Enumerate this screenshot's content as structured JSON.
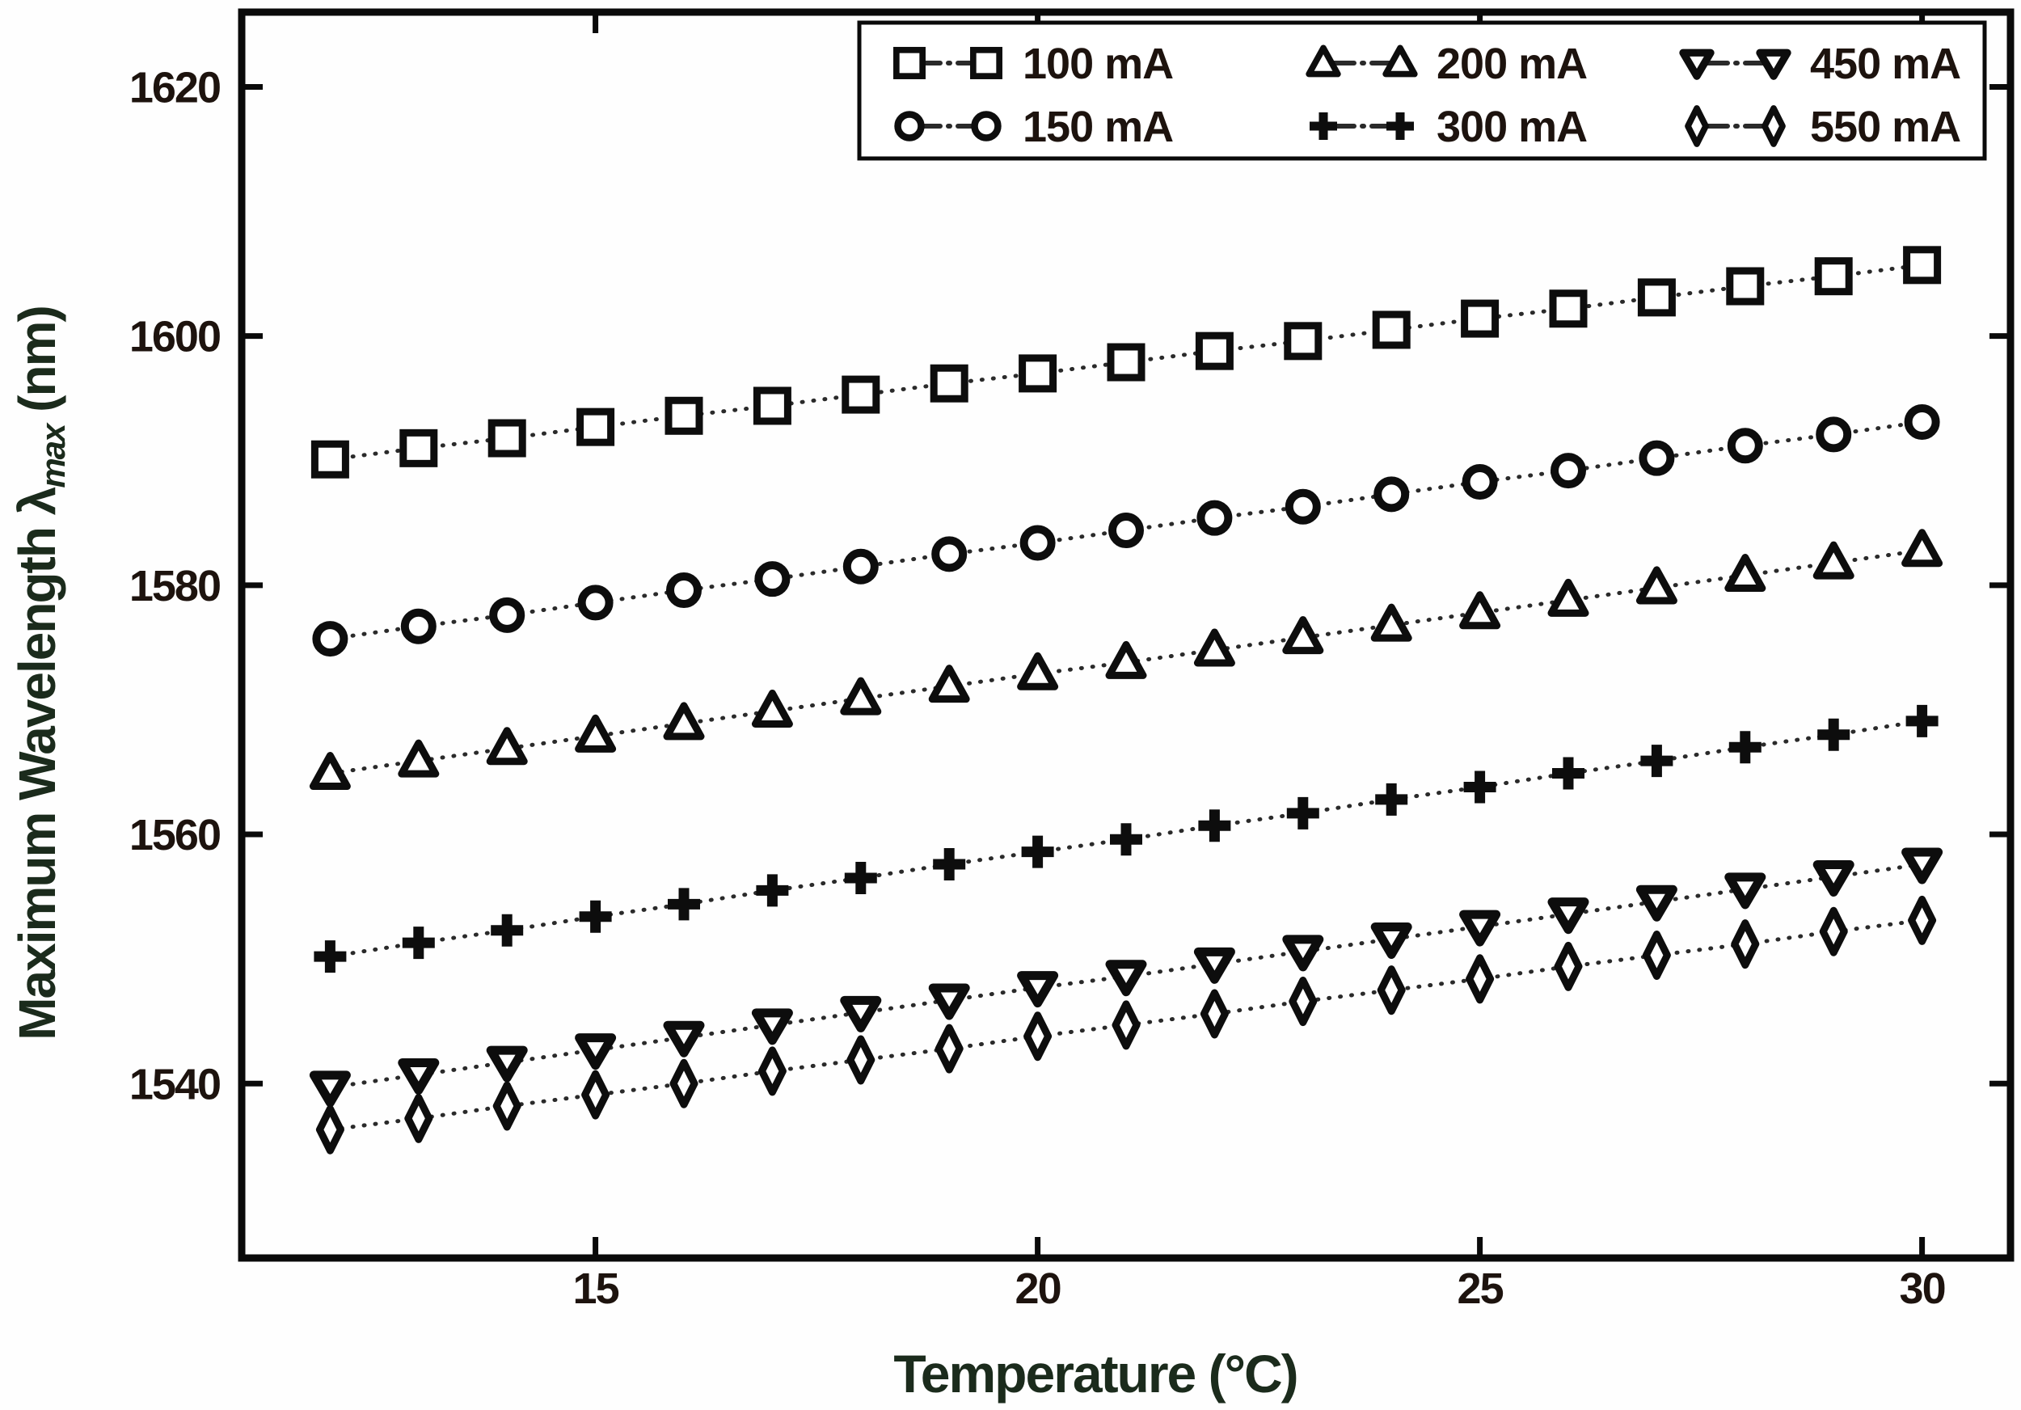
{
  "figure": {
    "background": "#fefefe",
    "frame_color": "#0a0a0a",
    "tick_label_color": "#1d130e",
    "axis_title_color": "#1b2b1c",
    "marker_color": "#0d0d0d",
    "line_color": "#2a2a2a"
  },
  "chart_data": {
    "type": "line",
    "title": "",
    "xlabel": "Temperature (°C)",
    "ylabel": "Maximum Wavelength λmax (nm)",
    "ylabel_parts": {
      "prefix": "Maximum Wavelength λ",
      "sub": "max",
      "suffix": " (nm)"
    },
    "xlim": [
      11,
      31
    ],
    "ylim": [
      1526,
      1626
    ],
    "xticks": [
      15,
      20,
      25,
      30
    ],
    "yticks": [
      1540,
      1560,
      1580,
      1600,
      1620
    ],
    "grid": false,
    "line_style": "dotted",
    "legend_position": "top-right-inside",
    "legend_columns": [
      [
        0,
        1
      ],
      [
        2,
        3
      ],
      [
        4,
        5
      ]
    ],
    "x": [
      12,
      13,
      14,
      15,
      16,
      17,
      18,
      19,
      20,
      21,
      22,
      23,
      24,
      25,
      26,
      27,
      28,
      29,
      30
    ],
    "series": [
      {
        "name": "100 mA",
        "marker": "square",
        "values": [
          1590.1,
          1591.0,
          1591.8,
          1592.7,
          1593.6,
          1594.4,
          1595.3,
          1596.2,
          1597.0,
          1597.9,
          1598.8,
          1599.6,
          1600.5,
          1601.4,
          1602.2,
          1603.1,
          1604.0,
          1604.8,
          1605.7
        ]
      },
      {
        "name": "150 mA",
        "marker": "circle",
        "values": [
          1575.7,
          1576.7,
          1577.6,
          1578.6,
          1579.6,
          1580.5,
          1581.5,
          1582.5,
          1583.4,
          1584.4,
          1585.4,
          1586.3,
          1587.3,
          1588.3,
          1589.2,
          1590.2,
          1591.2,
          1592.1,
          1593.1
        ]
      },
      {
        "name": "200 mA",
        "marker": "triangle-up",
        "values": [
          1564.9,
          1565.9,
          1566.9,
          1567.9,
          1568.9,
          1569.9,
          1570.9,
          1571.9,
          1572.9,
          1573.8,
          1574.8,
          1575.8,
          1576.8,
          1577.8,
          1578.8,
          1579.8,
          1580.8,
          1581.8,
          1582.8
        ]
      },
      {
        "name": "300 mA",
        "marker": "plus",
        "values": [
          1550.2,
          1551.3,
          1552.3,
          1553.4,
          1554.4,
          1555.5,
          1556.5,
          1557.6,
          1558.6,
          1559.6,
          1560.7,
          1561.7,
          1562.8,
          1563.8,
          1564.9,
          1565.9,
          1567.0,
          1568.0,
          1569.1
        ]
      },
      {
        "name": "450 mA",
        "marker": "triangle-down",
        "values": [
          1539.7,
          1540.7,
          1541.7,
          1542.7,
          1543.7,
          1544.7,
          1545.7,
          1546.7,
          1547.7,
          1548.6,
          1549.6,
          1550.6,
          1551.6,
          1552.6,
          1553.6,
          1554.6,
          1555.6,
          1556.6,
          1557.6
        ]
      },
      {
        "name": "550 mA",
        "marker": "diamond",
        "values": [
          1536.3,
          1537.2,
          1538.2,
          1539.1,
          1540.0,
          1541.0,
          1541.9,
          1542.8,
          1543.8,
          1544.7,
          1545.6,
          1546.6,
          1547.5,
          1548.4,
          1549.4,
          1550.3,
          1551.2,
          1552.2,
          1553.1
        ]
      }
    ]
  }
}
